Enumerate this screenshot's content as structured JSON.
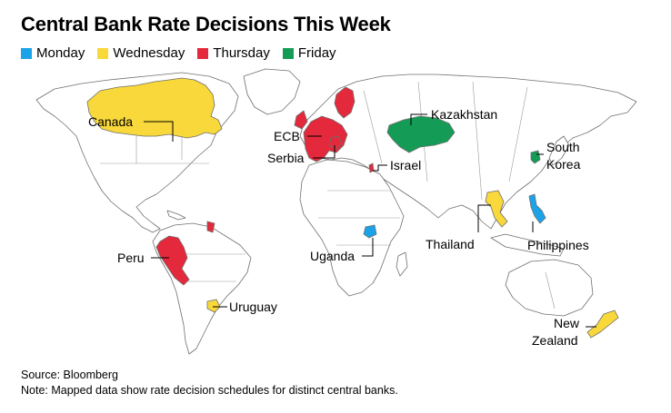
{
  "title": "Central Bank Rate Decisions This Week",
  "legend": [
    {
      "label": "Monday",
      "color": "#1aa3e8"
    },
    {
      "label": "Wednesday",
      "color": "#f8d83a"
    },
    {
      "label": "Thursday",
      "color": "#e3293b"
    },
    {
      "label": "Friday",
      "color": "#149c57"
    }
  ],
  "labels": {
    "canada": "Canada",
    "peru": "Peru",
    "uruguay": "Uruguay",
    "ecb": "ECB",
    "serbia": "Serbia",
    "israel": "Israel",
    "kazakhstan": "Kazakhstan",
    "south_korea_1": "South",
    "south_korea_2": "Korea",
    "uganda": "Uganda",
    "thailand": "Thailand",
    "philippines": "Philippines",
    "new_zealand_1": "New",
    "new_zealand_2": "Zealand"
  },
  "countries": [
    {
      "name": "Canada",
      "day": "Wednesday"
    },
    {
      "name": "Uruguay",
      "day": "Wednesday"
    },
    {
      "name": "Thailand",
      "day": "Wednesday"
    },
    {
      "name": "New Zealand",
      "day": "Wednesday"
    },
    {
      "name": "Peru",
      "day": "Thursday"
    },
    {
      "name": "ECB",
      "day": "Thursday"
    },
    {
      "name": "Serbia",
      "day": "Thursday"
    },
    {
      "name": "Israel",
      "day": "Thursday"
    },
    {
      "name": "Uganda",
      "day": "Monday"
    },
    {
      "name": "Philippines",
      "day": "Monday"
    },
    {
      "name": "Kazakhstan",
      "day": "Friday"
    },
    {
      "name": "South Korea",
      "day": "Friday"
    }
  ],
  "footer": {
    "source": "Source: Bloomberg",
    "note": "Note: Mapped data show rate decision schedules for distinct central banks."
  }
}
